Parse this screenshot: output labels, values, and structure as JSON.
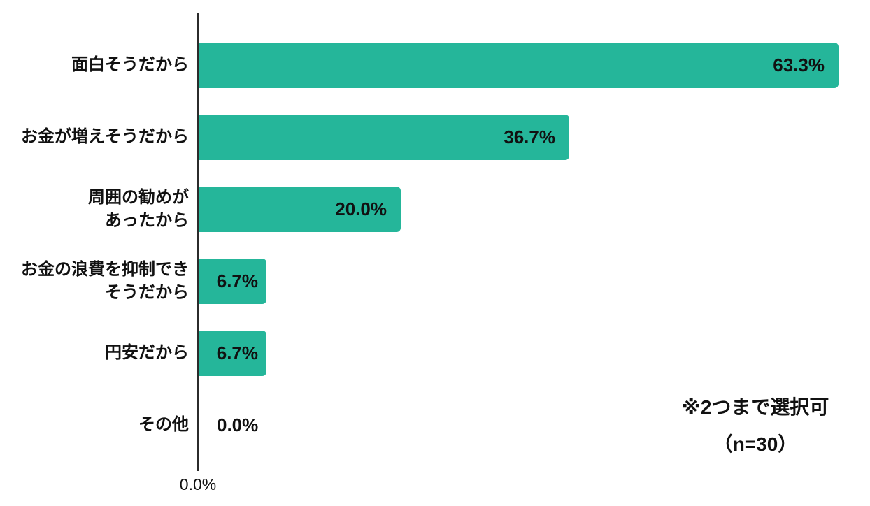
{
  "chart_data": {
    "type": "bar",
    "orientation": "horizontal",
    "title": "",
    "categories": [
      "面白そうだから",
      "お金が増えそうだから",
      "周囲の勧めが\nあったから",
      "お金の浪費を抑制でき\nそうだから",
      "円安だから",
      "その他"
    ],
    "values": [
      63.3,
      36.7,
      20.0,
      6.7,
      6.7,
      0.0
    ],
    "value_labels": [
      "63.3%",
      "36.7%",
      "20.0%",
      "6.7%",
      "6.7%",
      "0.0%"
    ],
    "xlim": [
      0,
      66.5
    ],
    "x_axis_tick_label": "0.0%",
    "grid": false,
    "legend": false,
    "annotations": [
      "※2つまで選択可",
      "（n=30）"
    ],
    "colors": {
      "bar": "#25B69A",
      "text": "#111111",
      "axis": "#2B2B2B",
      "background": "#FFFFFF"
    }
  }
}
